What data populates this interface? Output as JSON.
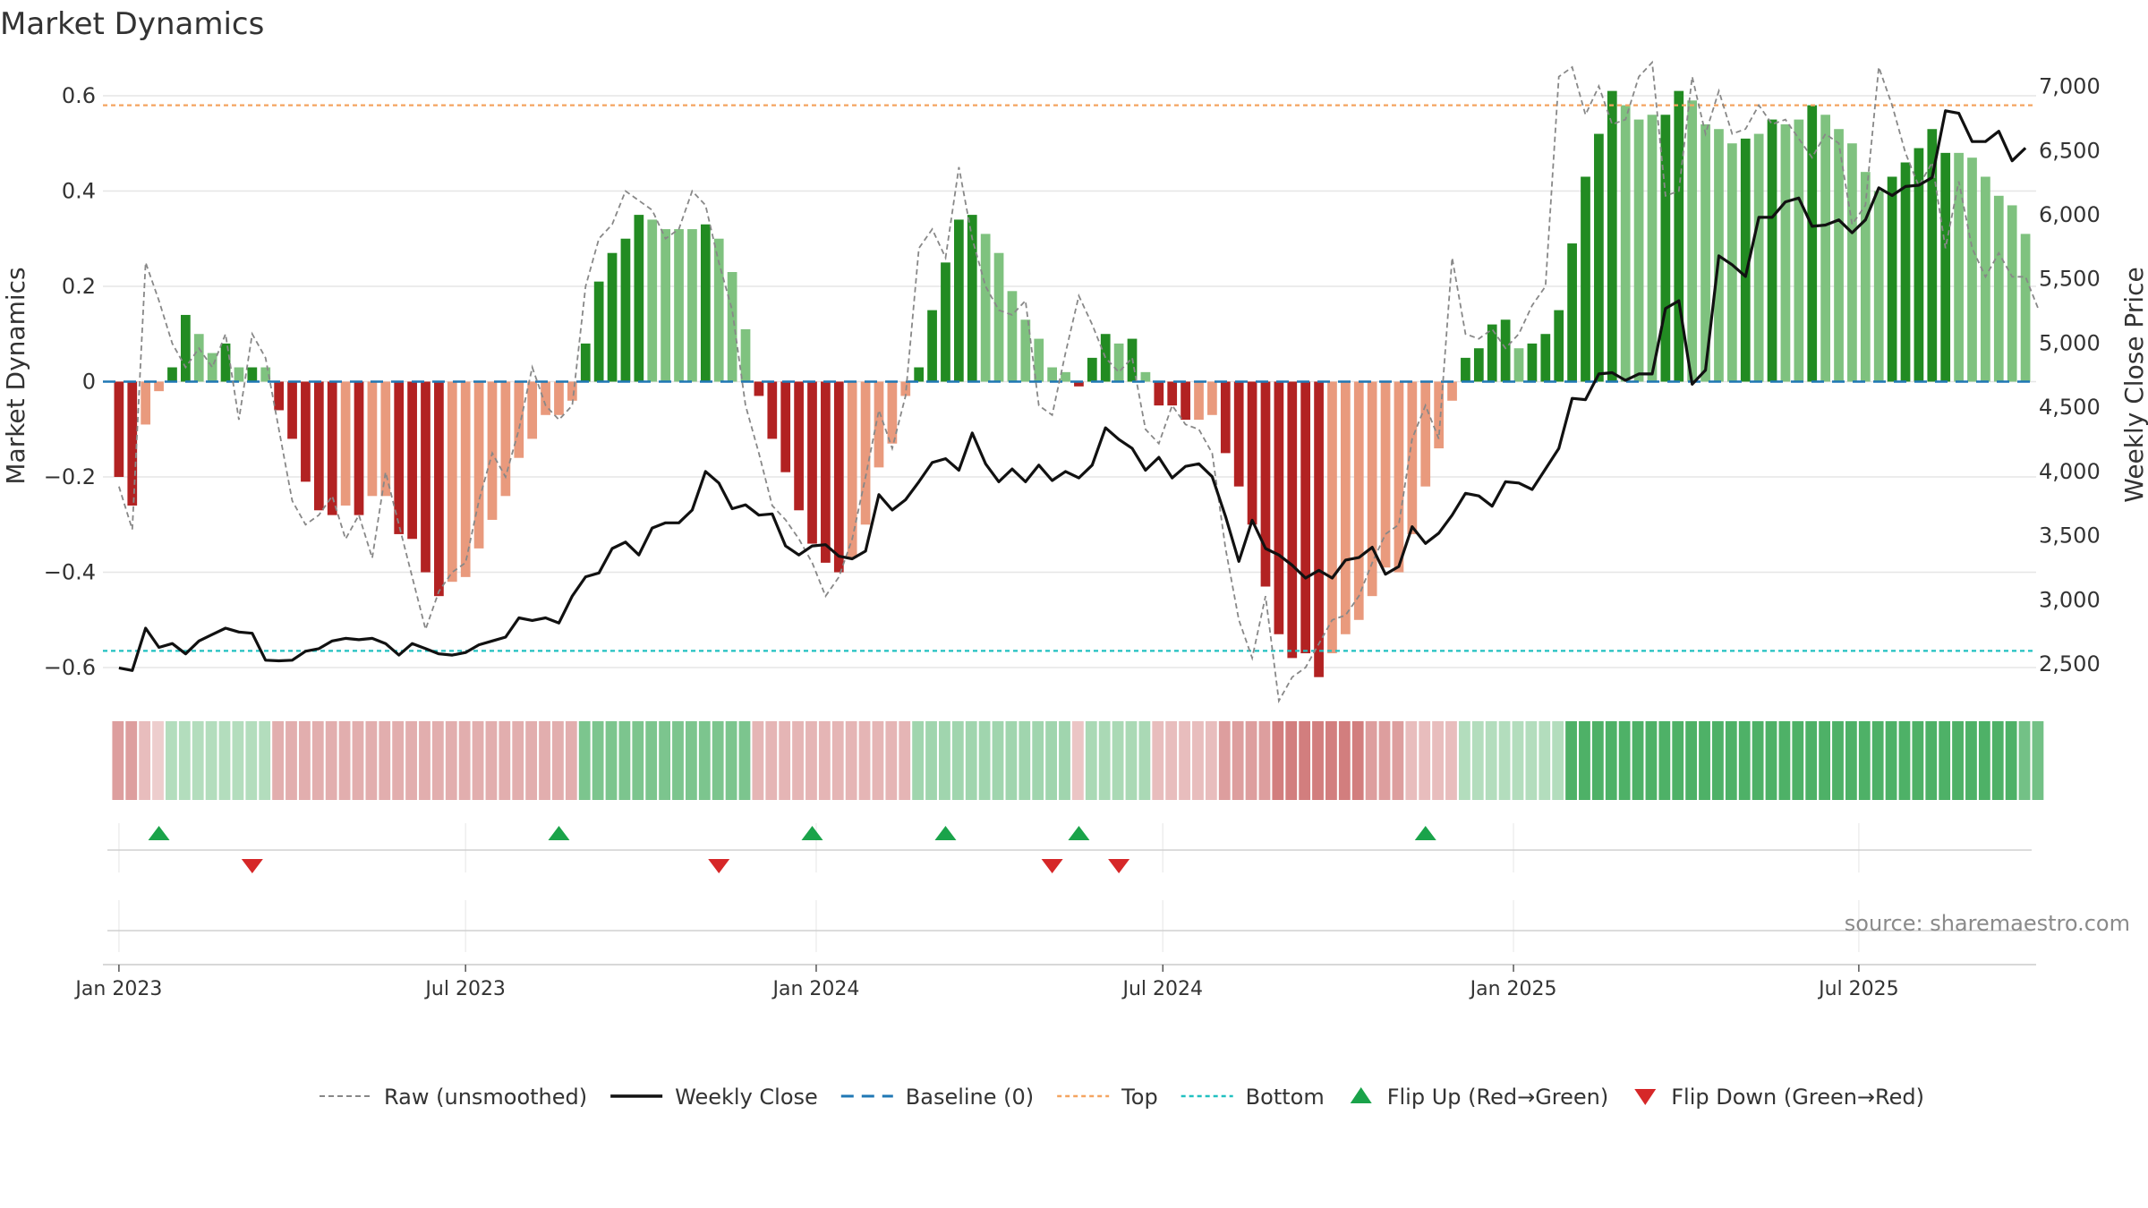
{
  "chart_data": {
    "type": "bar",
    "title": "Market Dynamics",
    "ylabel": "Market Dynamics",
    "y2label": "Weekly Close Price",
    "ylim": [
      -0.66,
      0.66
    ],
    "y2lim": [
      2250,
      7150
    ],
    "y_ticks": [
      {
        "v": 0.6,
        "label": "0.6"
      },
      {
        "v": 0.4,
        "label": "0.4"
      },
      {
        "v": 0.2,
        "label": "0.2"
      },
      {
        "v": 0,
        "label": "0"
      },
      {
        "v": -0.2,
        "label": "−0.2"
      },
      {
        "v": -0.4,
        "label": "−0.4"
      },
      {
        "v": -0.6,
        "label": "−0.6"
      }
    ],
    "y2_ticks": [
      {
        "v": 7000,
        "label": "7,000"
      },
      {
        "v": 6500,
        "label": "6,500"
      },
      {
        "v": 6000,
        "label": "6,000"
      },
      {
        "v": 5500,
        "label": "5,500"
      },
      {
        "v": 5000,
        "label": "5,000"
      },
      {
        "v": 4500,
        "label": "4,500"
      },
      {
        "v": 4000,
        "label": "4,000"
      },
      {
        "v": 3500,
        "label": "3,500"
      },
      {
        "v": 3000,
        "label": "3,000"
      },
      {
        "v": 2500,
        "label": "2,500"
      }
    ],
    "x_ticks": [
      {
        "week": 0,
        "label": "Jan 2023"
      },
      {
        "week": 26,
        "label": "Jul 2023"
      },
      {
        "week": 52.3,
        "label": "Jan 2024"
      },
      {
        "week": 78.3,
        "label": "Jul 2024"
      },
      {
        "week": 104.6,
        "label": "Jan 2025"
      },
      {
        "week": 130.5,
        "label": "Jul 2025"
      }
    ],
    "x_domain": [
      -1.2,
      143.8
    ],
    "top_line": 0.58,
    "bottom_line": -0.565,
    "baseline": 0,
    "bars": [
      -0.2,
      -0.26,
      -0.09,
      -0.02,
      0.03,
      0.14,
      0.1,
      0.06,
      0.08,
      0.03,
      0.03,
      0.03,
      -0.06,
      -0.12,
      -0.21,
      -0.27,
      -0.28,
      -0.26,
      -0.28,
      -0.24,
      -0.24,
      -0.32,
      -0.33,
      -0.4,
      -0.45,
      -0.42,
      -0.41,
      -0.35,
      -0.29,
      -0.24,
      -0.16,
      -0.12,
      -0.07,
      -0.07,
      -0.04,
      0.08,
      0.21,
      0.27,
      0.3,
      0.35,
      0.34,
      0.32,
      0.32,
      0.32,
      0.33,
      0.3,
      0.23,
      0.11,
      -0.03,
      -0.12,
      -0.19,
      -0.27,
      -0.34,
      -0.38,
      -0.4,
      -0.37,
      -0.3,
      -0.18,
      -0.13,
      -0.03,
      0.03,
      0.15,
      0.25,
      0.34,
      0.35,
      0.31,
      0.27,
      0.19,
      0.13,
      0.09,
      0.03,
      0.02,
      -0.01,
      0.05,
      0.1,
      0.08,
      0.09,
      0.02,
      -0.05,
      -0.05,
      -0.08,
      -0.08,
      -0.07,
      -0.15,
      -0.22,
      -0.3,
      -0.43,
      -0.53,
      -0.58,
      -0.57,
      -0.62,
      -0.57,
      -0.53,
      -0.5,
      -0.45,
      -0.39,
      -0.4,
      -0.32,
      -0.22,
      -0.14,
      -0.04,
      0.05,
      0.07,
      0.12,
      0.13,
      0.07,
      0.08,
      0.1,
      0.15,
      0.29,
      0.43,
      0.52,
      0.61,
      0.58,
      0.55,
      0.56,
      0.56,
      0.61,
      0.59,
      0.54,
      0.53,
      0.5,
      0.51,
      0.52,
      0.55,
      0.54,
      0.55,
      0.58,
      0.56,
      0.53,
      0.5,
      0.44,
      0.4,
      0.43,
      0.46,
      0.49,
      0.53,
      0.48,
      0.48,
      0.47,
      0.43,
      0.39,
      0.37,
      0.31
    ],
    "bar_shade": [
      "d",
      "d",
      "l",
      "l",
      "d",
      "d",
      "l",
      "l",
      "d",
      "l",
      "d",
      "l",
      "d",
      "d",
      "d",
      "d",
      "d",
      "l",
      "d",
      "l",
      "l",
      "d",
      "d",
      "d",
      "d",
      "l",
      "l",
      "l",
      "l",
      "l",
      "l",
      "l",
      "l",
      "l",
      "l",
      "d",
      "d",
      "d",
      "d",
      "d",
      "l",
      "l",
      "l",
      "l",
      "d",
      "l",
      "l",
      "l",
      "d",
      "d",
      "d",
      "d",
      "d",
      "d",
      "d",
      "l",
      "l",
      "l",
      "l",
      "l",
      "d",
      "d",
      "d",
      "d",
      "d",
      "l",
      "l",
      "l",
      "l",
      "l",
      "l",
      "l",
      "d",
      "d",
      "d",
      "l",
      "d",
      "l",
      "d",
      "d",
      "d",
      "l",
      "l",
      "d",
      "d",
      "d",
      "d",
      "d",
      "d",
      "d",
      "d",
      "l",
      "l",
      "l",
      "l",
      "l",
      "l",
      "l",
      "l",
      "l",
      "l",
      "d",
      "d",
      "d",
      "d",
      "l",
      "d",
      "d",
      "d",
      "d",
      "d",
      "d",
      "d",
      "l",
      "l",
      "l",
      "d",
      "d",
      "l",
      "l",
      "l",
      "l",
      "d",
      "l",
      "d",
      "l",
      "l",
      "d",
      "l",
      "l",
      "l",
      "l",
      "l",
      "d",
      "d",
      "d",
      "d",
      "d",
      "l",
      "l",
      "l",
      "l",
      "l"
    ],
    "raw": [
      -0.22,
      -0.31,
      0.25,
      0.17,
      0.08,
      0.03,
      0.07,
      0.03,
      0.1,
      -0.08,
      0.1,
      0.05,
      -0.1,
      -0.25,
      -0.3,
      -0.28,
      -0.24,
      -0.33,
      -0.28,
      -0.37,
      -0.19,
      -0.3,
      -0.41,
      -0.52,
      -0.44,
      -0.4,
      -0.38,
      -0.25,
      -0.15,
      -0.2,
      -0.1,
      0.03,
      -0.05,
      -0.08,
      -0.05,
      0.2,
      0.3,
      0.33,
      0.4,
      0.38,
      0.36,
      0.3,
      0.32,
      0.4,
      0.37,
      0.25,
      0.15,
      -0.05,
      -0.15,
      -0.26,
      -0.29,
      -0.33,
      -0.38,
      -0.45,
      -0.41,
      -0.33,
      -0.2,
      -0.06,
      -0.14,
      -0.03,
      0.28,
      0.32,
      0.26,
      0.45,
      0.3,
      0.2,
      0.15,
      0.14,
      0.17,
      -0.05,
      -0.07,
      0.06,
      0.18,
      0.12,
      0.05,
      0.02,
      0.05,
      -0.1,
      -0.13,
      -0.05,
      -0.09,
      -0.1,
      -0.15,
      -0.35,
      -0.5,
      -0.58,
      -0.45,
      -0.67,
      -0.62,
      -0.6,
      -0.55,
      -0.5,
      -0.49,
      -0.45,
      -0.38,
      -0.32,
      -0.3,
      -0.12,
      -0.05,
      -0.12,
      0.26,
      0.1,
      0.09,
      0.11,
      0.07,
      0.1,
      0.16,
      0.2,
      0.64,
      0.66,
      0.56,
      0.62,
      0.54,
      0.55,
      0.64,
      0.67,
      0.39,
      0.4,
      0.64,
      0.52,
      0.61,
      0.52,
      0.53,
      0.58,
      0.54,
      0.55,
      0.51,
      0.47,
      0.52,
      0.5,
      0.33,
      0.37,
      0.66,
      0.58,
      0.48,
      0.41,
      0.46,
      0.28,
      0.42,
      0.28,
      0.22,
      0.27,
      0.22,
      0.22,
      0.15
    ],
    "close": [
      2470,
      2450,
      2780,
      2630,
      2660,
      2580,
      2680,
      2730,
      2780,
      2750,
      2740,
      2530,
      2525,
      2530,
      2600,
      2620,
      2680,
      2700,
      2690,
      2700,
      2660,
      2570,
      2660,
      2620,
      2580,
      2570,
      2590,
      2650,
      2680,
      2710,
      2860,
      2840,
      2860,
      2820,
      3030,
      3180,
      3210,
      3400,
      3450,
      3350,
      3560,
      3600,
      3600,
      3700,
      4000,
      3910,
      3710,
      3740,
      3660,
      3670,
      3420,
      3350,
      3420,
      3430,
      3340,
      3320,
      3380,
      3820,
      3700,
      3780,
      3920,
      4070,
      4100,
      4010,
      4300,
      4060,
      3920,
      4020,
      3920,
      4050,
      3930,
      4000,
      3950,
      4050,
      4340,
      4250,
      4180,
      4010,
      4110,
      3950,
      4040,
      4060,
      3960,
      3650,
      3300,
      3620,
      3400,
      3350,
      3270,
      3170,
      3230,
      3170,
      3310,
      3330,
      3410,
      3200,
      3260,
      3570,
      3440,
      3520,
      3660,
      3830,
      3810,
      3730,
      3920,
      3910,
      3860,
      4020,
      4180,
      4570,
      4560,
      4760,
      4770,
      4710,
      4760,
      4760,
      5270,
      5330,
      4680,
      4790,
      5680,
      5610,
      5520,
      5980,
      5980,
      6100,
      6130,
      5910,
      5920,
      5960,
      5860,
      5960,
      6210,
      6150,
      6220,
      6230,
      6290,
      6810,
      6790,
      6570,
      6570,
      6650,
      6420,
      6520
    ],
    "flip_up_weeks": [
      3,
      33,
      52,
      62,
      72,
      98
    ],
    "flip_down_weeks": [
      10,
      45,
      70,
      75
    ],
    "regime_levels": [
      -0.5,
      -0.5,
      -0.3,
      -0.2,
      0.3,
      0.3,
      0.3,
      0.3,
      0.3,
      0.3,
      0.3,
      0.3,
      -0.4,
      -0.4,
      -0.4,
      -0.4,
      -0.4,
      -0.4,
      -0.4,
      -0.4,
      -0.4,
      -0.4,
      -0.4,
      -0.4,
      -0.4,
      -0.4,
      -0.4,
      -0.4,
      -0.4,
      -0.4,
      -0.4,
      -0.4,
      -0.4,
      -0.4,
      -0.4,
      0.6,
      0.6,
      0.6,
      0.6,
      0.6,
      0.6,
      0.6,
      0.6,
      0.6,
      0.6,
      0.6,
      0.6,
      0.6,
      -0.35,
      -0.35,
      -0.35,
      -0.35,
      -0.35,
      -0.35,
      -0.35,
      -0.35,
      -0.35,
      -0.35,
      -0.35,
      -0.35,
      0.4,
      0.4,
      0.4,
      0.4,
      0.4,
      0.4,
      0.4,
      0.4,
      0.4,
      0.4,
      0.4,
      0.4,
      -0.25,
      0.35,
      0.35,
      0.35,
      0.35,
      0.35,
      -0.3,
      -0.3,
      -0.3,
      -0.3,
      -0.3,
      -0.5,
      -0.5,
      -0.5,
      -0.5,
      -0.7,
      -0.7,
      -0.7,
      -0.7,
      -0.7,
      -0.7,
      -0.7,
      -0.5,
      -0.5,
      -0.5,
      -0.3,
      -0.3,
      -0.3,
      -0.3,
      0.3,
      0.3,
      0.3,
      0.3,
      0.3,
      0.3,
      0.3,
      0.3,
      0.85,
      0.85,
      0.85,
      0.85,
      0.85,
      0.85,
      0.85,
      0.85,
      0.85,
      0.85,
      0.85,
      0.85,
      0.85,
      0.85,
      0.85,
      0.85,
      0.85,
      0.85,
      0.85,
      0.85,
      0.85,
      0.85,
      0.85,
      0.85,
      0.85,
      0.85,
      0.85,
      0.85,
      0.85,
      0.85,
      0.85,
      0.85,
      0.85,
      0.85,
      0.65,
      0.65
    ],
    "source": "source: sharemaestro.com",
    "legend": [
      {
        "key": "raw",
        "label": "Raw (unsmoothed)"
      },
      {
        "key": "close",
        "label": "Weekly Close"
      },
      {
        "key": "baseline",
        "label": "Baseline (0)"
      },
      {
        "key": "top",
        "label": "Top"
      },
      {
        "key": "bottom",
        "label": "Bottom"
      },
      {
        "key": "flip_up",
        "label": "Flip Up (Red→Green)"
      },
      {
        "key": "flip_down",
        "label": "Flip Down (Green→Red)"
      }
    ],
    "colors": {
      "dark_green": "#228b22",
      "light_green": "#7fc27f",
      "dark_red": "#b22222",
      "light_red": "#e99a7d",
      "raw": "#888888",
      "close": "#111111",
      "baseline": "#1f77b4",
      "top": "#f4a460",
      "bottom": "#20c0c0",
      "flip_up": "#1aa34a",
      "flip_down": "#d62728",
      "grid": "#e6e6e6"
    }
  }
}
